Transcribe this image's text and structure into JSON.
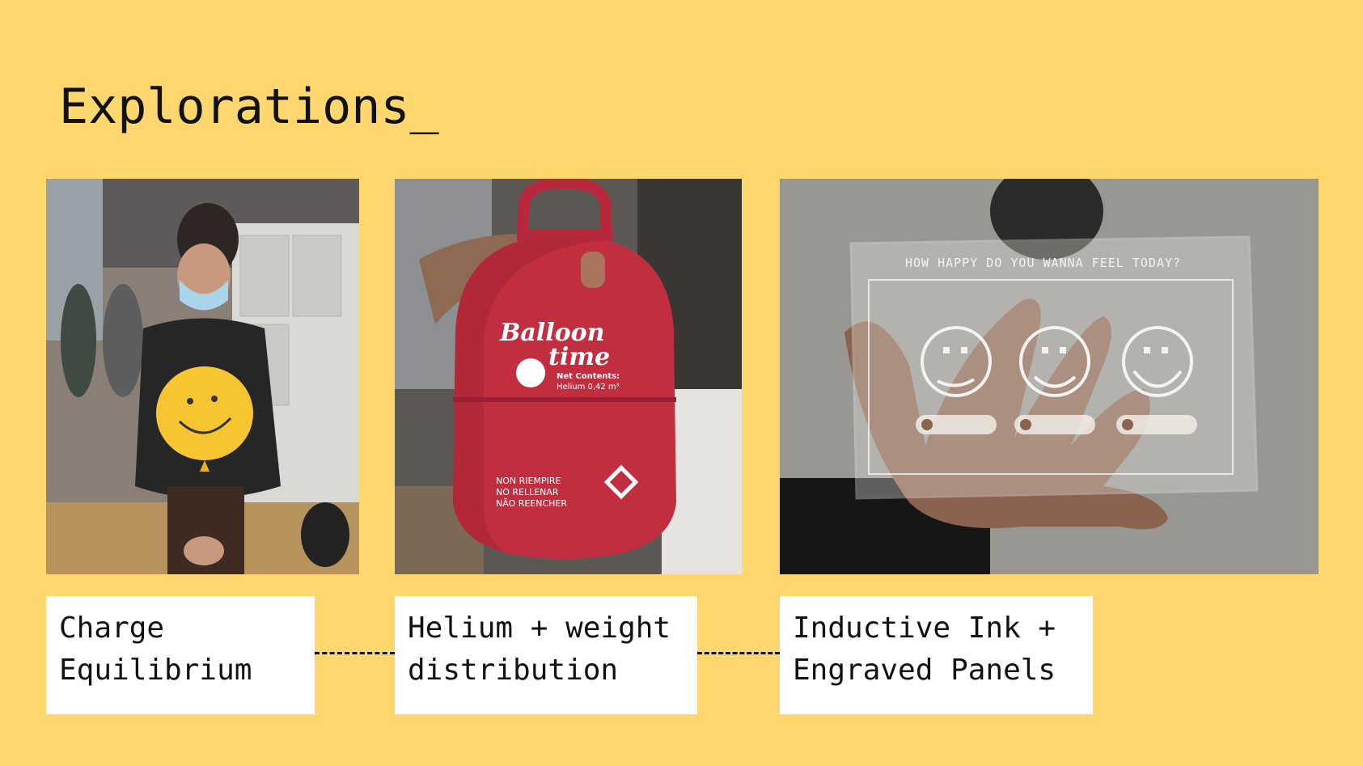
{
  "slide": {
    "title": "Explorations_",
    "background": "#FED76F"
  },
  "panels": [
    {
      "caption_line1": "Charge",
      "caption_line2": "Equilibrium",
      "photo": "person-with-smiley-balloon"
    },
    {
      "caption_line1": "Helium + weight",
      "caption_line2": "distribution",
      "photo": "balloon-time-helium-tank"
    },
    {
      "caption_line1": "Inductive Ink +",
      "caption_line2": "Engraved Panels",
      "photo": "engraved-acrylic-panel-in-hand"
    }
  ],
  "photo_text": {
    "tank_brand_line1": "Balloon",
    "tank_brand_line2": "time",
    "tank_label": "Net Contents:",
    "tank_contents": "Helium 0,42 m³",
    "tank_warning_1": "NON RIEMPIRE",
    "tank_warning_2": "NO RELLENAR",
    "tank_warning_3": "NÃO REENCHER",
    "panel_engraving": "HOW HAPPY DO YOU WANNA FEEL TODAY?"
  }
}
